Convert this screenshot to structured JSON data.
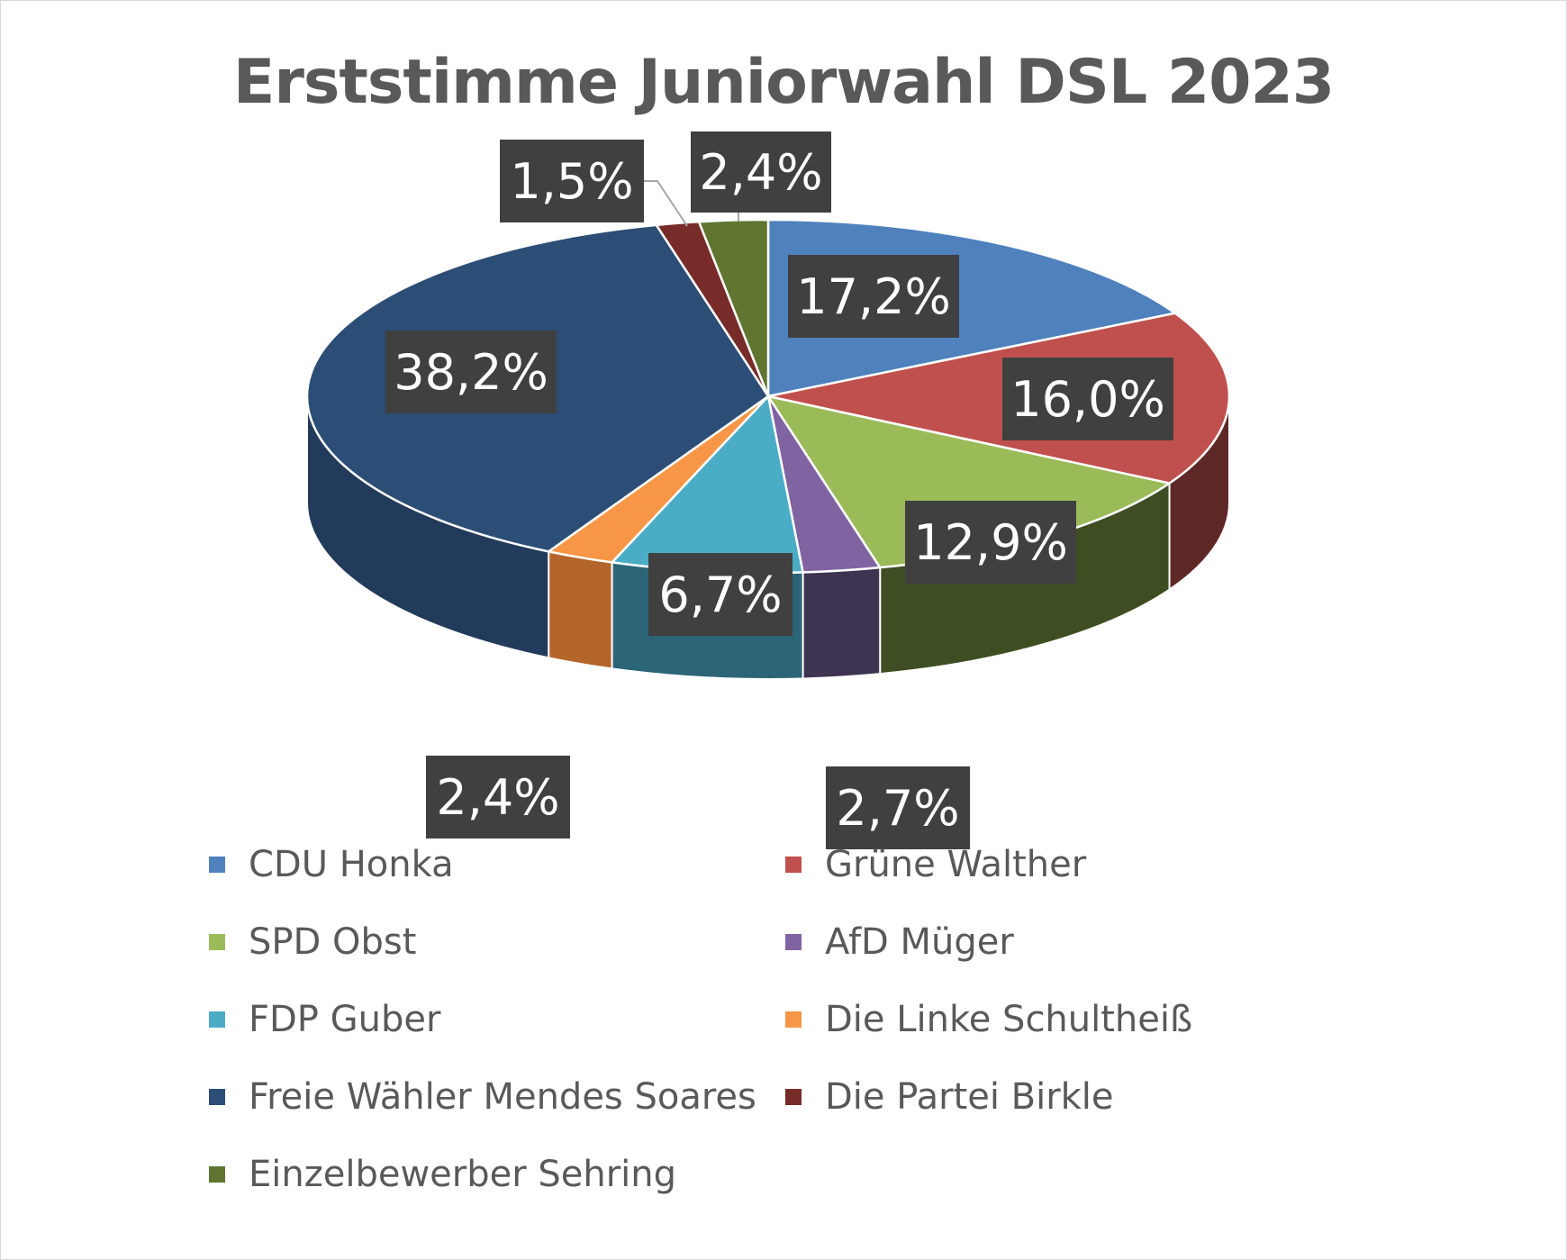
{
  "chart_data": {
    "type": "pie",
    "title": "Erststimme Juniorwahl DSL 2023",
    "series": [
      {
        "name": "CDU Honka",
        "value": 17.2,
        "label": "17,2%",
        "color": "#4F81BD",
        "side": "#3A5F8C"
      },
      {
        "name": "Grüne Walther",
        "value": 16.0,
        "label": "16,0%",
        "color": "#C0504D",
        "side": "#5E2826"
      },
      {
        "name": "SPD Obst",
        "value": 12.9,
        "label": "12,9%",
        "color": "#9BBB59",
        "side": "#3F4E22"
      },
      {
        "name": "AfD Müger",
        "value": 2.7,
        "label": "2,7%",
        "color": "#8064A2",
        "side": "#3E3350"
      },
      {
        "name": "FDP Guber",
        "value": 6.7,
        "label": "6,7%",
        "color": "#4BACC6",
        "side": "#2B6577"
      },
      {
        "name": "Die Linke Schultheiß",
        "value": 2.4,
        "label": "2,4%",
        "color": "#F79646",
        "side": "#B4652A"
      },
      {
        "name": "Freie Wähler Mendes Soares",
        "value": 38.2,
        "label": "38,2%",
        "color": "#2C4D75",
        "side": "#223B5A"
      },
      {
        "name": "Die Partei Birkle",
        "value": 1.5,
        "label": "1,5%",
        "color": "#772C2A",
        "side": "#4A1B1A"
      },
      {
        "name": "Einzelbewerber Sehring",
        "value": 2.4,
        "label": "2,4%",
        "color": "#5F7530",
        "side": "#3B4A1E"
      }
    ],
    "legend_position": "bottom"
  }
}
